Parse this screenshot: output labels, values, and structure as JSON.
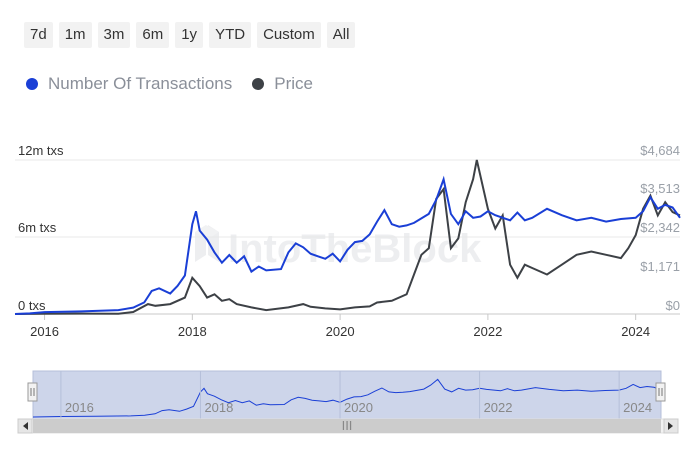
{
  "range_selector": {
    "buttons": [
      "7d",
      "1m",
      "3m",
      "6m",
      "1y",
      "YTD",
      "Custom",
      "All"
    ]
  },
  "legend": {
    "items": [
      {
        "label": "Number Of Transactions",
        "color": "#1a3fd6"
      },
      {
        "label": "Price",
        "color": "#3d4146"
      }
    ]
  },
  "watermark": "IntoTheBlock",
  "navigator": {
    "labels": [
      "2016",
      "2018",
      "2020",
      "2022",
      "2024"
    ],
    "scroll_grip": "III"
  },
  "chart_data": {
    "type": "line",
    "x_ticks": [
      "2016",
      "2018",
      "2020",
      "2022",
      "2024"
    ],
    "x_range": [
      2015.6,
      2024.6
    ],
    "left_axis": {
      "ticks": [
        "0 txs",
        "6m txs",
        "12m txs"
      ],
      "range": [
        0,
        12000000
      ]
    },
    "right_axis": {
      "ticks": [
        "$0",
        "$1,171",
        "$2,342",
        "$3,513",
        "$4,684"
      ],
      "range": [
        0,
        4684
      ]
    },
    "series": [
      {
        "name": "Number Of Transactions",
        "axis": "left",
        "color": "#1a3fd6",
        "points": [
          [
            2015.6,
            0
          ],
          [
            2015.8,
            50000
          ],
          [
            2016.0,
            150000
          ],
          [
            2016.5,
            200000
          ],
          [
            2017.0,
            300000
          ],
          [
            2017.2,
            500000
          ],
          [
            2017.35,
            900000
          ],
          [
            2017.45,
            1800000
          ],
          [
            2017.55,
            2000000
          ],
          [
            2017.7,
            1600000
          ],
          [
            2017.8,
            2200000
          ],
          [
            2017.9,
            3000000
          ],
          [
            2018.0,
            7000000
          ],
          [
            2018.05,
            8000000
          ],
          [
            2018.1,
            6500000
          ],
          [
            2018.2,
            5800000
          ],
          [
            2018.3,
            4800000
          ],
          [
            2018.4,
            4000000
          ],
          [
            2018.5,
            4600000
          ],
          [
            2018.6,
            4000000
          ],
          [
            2018.7,
            4500000
          ],
          [
            2018.8,
            3300000
          ],
          [
            2018.9,
            3700000
          ],
          [
            2019.0,
            3400000
          ],
          [
            2019.2,
            3500000
          ],
          [
            2019.3,
            4800000
          ],
          [
            2019.4,
            5500000
          ],
          [
            2019.5,
            5200000
          ],
          [
            2019.6,
            4700000
          ],
          [
            2019.7,
            4500000
          ],
          [
            2019.8,
            4300000
          ],
          [
            2019.9,
            4700000
          ],
          [
            2020.0,
            4100000
          ],
          [
            2020.1,
            5000000
          ],
          [
            2020.2,
            5600000
          ],
          [
            2020.3,
            5700000
          ],
          [
            2020.4,
            6200000
          ],
          [
            2020.5,
            7200000
          ],
          [
            2020.6,
            8100000
          ],
          [
            2020.7,
            7000000
          ],
          [
            2020.8,
            6800000
          ],
          [
            2020.9,
            6900000
          ],
          [
            2021.0,
            7100000
          ],
          [
            2021.2,
            7800000
          ],
          [
            2021.3,
            8900000
          ],
          [
            2021.4,
            10500000
          ],
          [
            2021.5,
            7800000
          ],
          [
            2021.6,
            7000000
          ],
          [
            2021.7,
            8000000
          ],
          [
            2021.8,
            7500000
          ],
          [
            2021.9,
            7600000
          ],
          [
            2022.0,
            8000000
          ],
          [
            2022.1,
            7700000
          ],
          [
            2022.3,
            7300000
          ],
          [
            2022.4,
            7900000
          ],
          [
            2022.5,
            7300000
          ],
          [
            2022.6,
            7500000
          ],
          [
            2022.8,
            8200000
          ],
          [
            2023.0,
            7700000
          ],
          [
            2023.2,
            7300000
          ],
          [
            2023.4,
            7500000
          ],
          [
            2023.6,
            7200000
          ],
          [
            2023.8,
            7400000
          ],
          [
            2024.0,
            7500000
          ],
          [
            2024.1,
            8000000
          ],
          [
            2024.2,
            9100000
          ],
          [
            2024.3,
            8200000
          ],
          [
            2024.4,
            8500000
          ],
          [
            2024.5,
            8300000
          ],
          [
            2024.6,
            7500000
          ]
        ]
      },
      {
        "name": "Price",
        "axis": "right",
        "color": "#3d4146",
        "points": [
          [
            2015.6,
            0
          ],
          [
            2016.0,
            10
          ],
          [
            2016.5,
            12
          ],
          [
            2017.0,
            10
          ],
          [
            2017.2,
            60
          ],
          [
            2017.4,
            300
          ],
          [
            2017.5,
            250
          ],
          [
            2017.7,
            300
          ],
          [
            2017.9,
            500
          ],
          [
            2018.0,
            1100
          ],
          [
            2018.1,
            850
          ],
          [
            2018.2,
            500
          ],
          [
            2018.3,
            600
          ],
          [
            2018.4,
            400
          ],
          [
            2018.5,
            450
          ],
          [
            2018.6,
            300
          ],
          [
            2018.8,
            200
          ],
          [
            2019.0,
            120
          ],
          [
            2019.3,
            200
          ],
          [
            2019.5,
            300
          ],
          [
            2019.6,
            220
          ],
          [
            2019.8,
            170
          ],
          [
            2020.0,
            140
          ],
          [
            2020.2,
            200
          ],
          [
            2020.4,
            230
          ],
          [
            2020.5,
            350
          ],
          [
            2020.7,
            400
          ],
          [
            2020.9,
            600
          ],
          [
            2021.0,
            1200
          ],
          [
            2021.1,
            1800
          ],
          [
            2021.2,
            2000
          ],
          [
            2021.3,
            3500
          ],
          [
            2021.4,
            3800
          ],
          [
            2021.5,
            2000
          ],
          [
            2021.6,
            2300
          ],
          [
            2021.7,
            3400
          ],
          [
            2021.8,
            4100
          ],
          [
            2021.85,
            4684
          ],
          [
            2022.0,
            3200
          ],
          [
            2022.1,
            2600
          ],
          [
            2022.2,
            3000
          ],
          [
            2022.3,
            1500
          ],
          [
            2022.4,
            1100
          ],
          [
            2022.5,
            1500
          ],
          [
            2022.6,
            1400
          ],
          [
            2022.8,
            1200
          ],
          [
            2023.0,
            1500
          ],
          [
            2023.2,
            1800
          ],
          [
            2023.4,
            1900
          ],
          [
            2023.6,
            1800
          ],
          [
            2023.8,
            1700
          ],
          [
            2023.9,
            2000
          ],
          [
            2024.0,
            2400
          ],
          [
            2024.1,
            3200
          ],
          [
            2024.2,
            3600
          ],
          [
            2024.3,
            3000
          ],
          [
            2024.4,
            3400
          ],
          [
            2024.5,
            3100
          ],
          [
            2024.6,
            3000
          ]
        ]
      }
    ]
  }
}
